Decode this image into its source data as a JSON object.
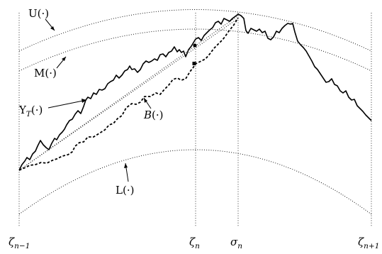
{
  "labels": {
    "U": "U(·)",
    "M": "M(·)",
    "Upsilon": "Υ",
    "Upsilon_sub": "T",
    "Upsilon_args": "(·)",
    "B": "B",
    "B_args": "(·)",
    "L": "L(·)"
  },
  "axis_labels": {
    "zeta_prev": {
      "sym": "ζ",
      "sub": "n−1"
    },
    "zeta_n": {
      "sym": "ζ",
      "sub": "n"
    },
    "sigma_n": {
      "sym": "σ",
      "sub": "n"
    },
    "zeta_next": {
      "sym": "ζ",
      "sub": "n+1"
    }
  },
  "colors": {
    "ink": "#000000",
    "background": "#ffffff"
  }
}
